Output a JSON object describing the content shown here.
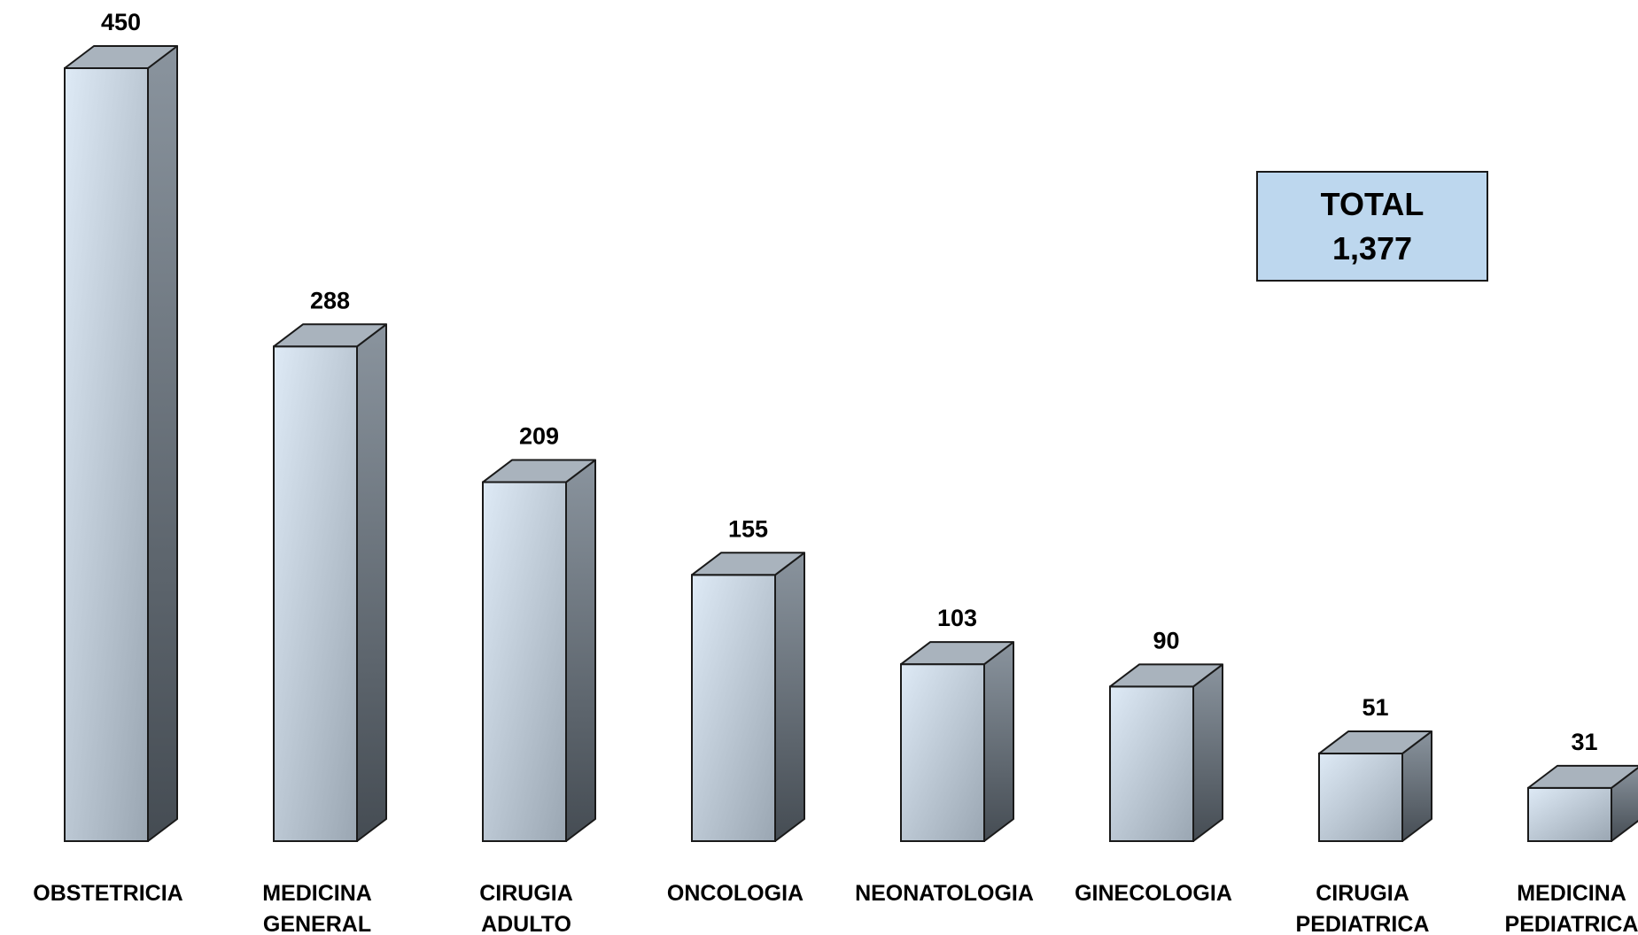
{
  "chart_data": {
    "type": "bar",
    "style": "3d-column",
    "categories": [
      [
        "OBSTETRICIA"
      ],
      [
        "MEDICINA",
        "GENERAL"
      ],
      [
        "CIRUGIA",
        "ADULTO"
      ],
      [
        "ONCOLOGIA"
      ],
      [
        "NEONATOLOGIA"
      ],
      [
        "GINECOLOGIA"
      ],
      [
        "CIRUGIA",
        "PEDIATRICA"
      ],
      [
        "MEDICINA",
        "PEDIATRICA"
      ]
    ],
    "values": [
      450,
      288,
      209,
      155,
      103,
      90,
      51,
      31
    ],
    "value_labels": [
      "450",
      "288",
      "209",
      "155",
      "103",
      "90",
      "51",
      "31"
    ],
    "ylim": [
      0,
      450
    ],
    "grid": false,
    "legend": "none",
    "colors": {
      "front_light": "#deeaf6",
      "front_dark": "#9aa6b2",
      "top": "#a9b3bd",
      "side_light": "#8a949e",
      "side_dark": "#454c53",
      "outline": "#1a1a1a"
    }
  },
  "total_box": {
    "label": "TOTAL",
    "value": "1,377",
    "background": "#bdd7ee"
  }
}
